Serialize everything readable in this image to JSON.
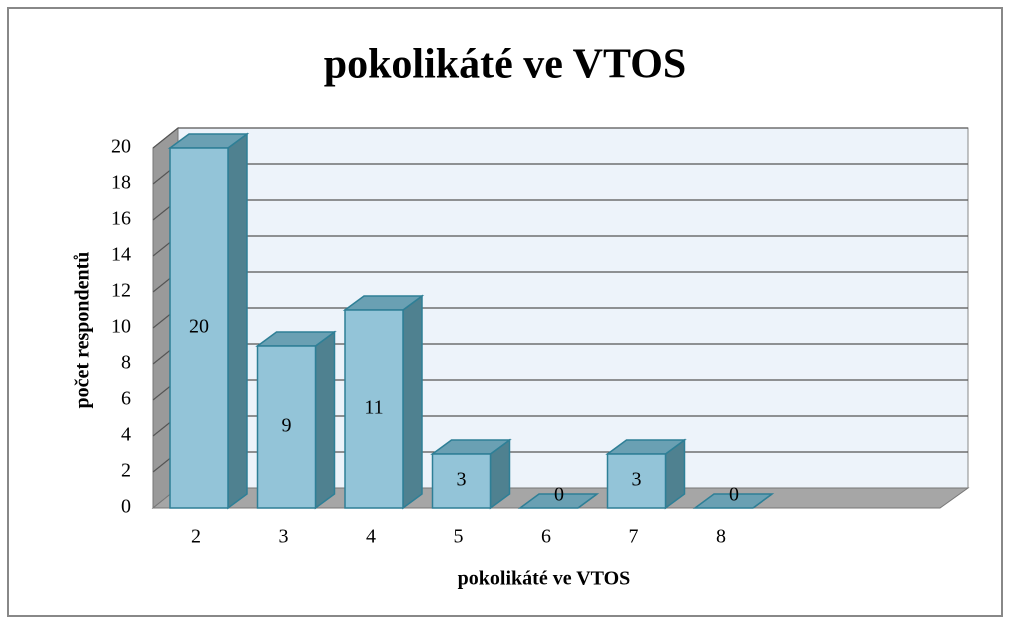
{
  "chart_data": {
    "type": "bar3d",
    "title": "pokolikáté ve VTOS",
    "x_label": "pokolikáté ve VTOS",
    "y_label": "počet respondentů",
    "categories": [
      "2",
      "3",
      "4",
      "5",
      "6",
      "7",
      "8"
    ],
    "values": [
      20,
      9,
      11,
      3,
      0,
      3,
      0
    ],
    "color": "#93c4d8",
    "ylim": [
      0,
      20
    ],
    "yticks": [
      0,
      2,
      4,
      6,
      8,
      10,
      12,
      14,
      16,
      18,
      20
    ],
    "grid": true
  }
}
